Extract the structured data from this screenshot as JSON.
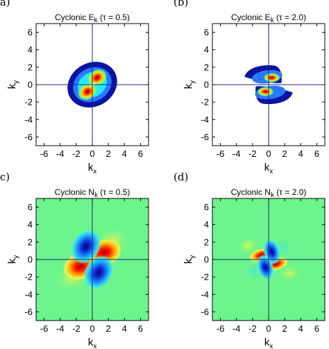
{
  "chart_data": [
    {
      "type": "heatmap",
      "panel": "(a)",
      "title": "Cyclonic E",
      "title_sub": "k",
      "title_suffix": " (τ = 0.5)",
      "xlabel": "k",
      "xlabel_sub": "x",
      "ylabel": "k",
      "ylabel_sub": "y",
      "xlim": [
        -7,
        7
      ],
      "ylim": [
        -7,
        7
      ],
      "xticks": [
        -6,
        -4,
        -2,
        0,
        2,
        4,
        6
      ],
      "yticks": [
        -6,
        -4,
        -2,
        0,
        2,
        4,
        6
      ],
      "background_color": "#ffffff",
      "contours": [
        {
          "level": "low",
          "color": "#0a14a0",
          "shape": "ellipse",
          "cx": 0,
          "cy": 0,
          "rx": 3.2,
          "ry": 2.5,
          "rotation_deg": -30
        },
        {
          "level": "mid-low",
          "color": "#2a78ff",
          "shape": "ellipse",
          "cx": 0,
          "cy": 0,
          "rx": 2.5,
          "ry": 1.9,
          "rotation_deg": -30
        },
        {
          "level": "mid",
          "color": "#28e8ff",
          "shape": "ellipse",
          "cx": 0,
          "cy": 0,
          "rx": 1.9,
          "ry": 1.4,
          "rotation_deg": -30
        }
      ],
      "peaks": [
        {
          "k_x": 0.6,
          "k_y": 0.8,
          "value": "max"
        },
        {
          "k_x": -0.6,
          "k_y": -0.8,
          "value": "max"
        }
      ]
    },
    {
      "type": "heatmap",
      "panel": "(b)",
      "title": "Cyclonic E",
      "title_sub": "k",
      "title_suffix": " (τ = 2.0)",
      "xlabel": "k",
      "xlabel_sub": "x",
      "ylabel": "k",
      "ylabel_sub": "y",
      "xlim": [
        -7,
        7
      ],
      "ylim": [
        -7,
        7
      ],
      "xticks": [
        -6,
        -4,
        -2,
        0,
        2,
        4,
        6
      ],
      "yticks": [
        -6,
        -4,
        -2,
        0,
        2,
        4,
        6
      ],
      "background_color": "#ffffff",
      "peaks": [
        {
          "k_x": 0.4,
          "k_y": 0.8,
          "value": "max"
        },
        {
          "k_x": -0.4,
          "k_y": -0.8,
          "value": "max"
        }
      ]
    },
    {
      "type": "heatmap",
      "panel": "(c)",
      "title": "Cyclonic N",
      "title_sub": "k",
      "title_suffix": " (τ = 0.5)",
      "xlabel": "k",
      "xlabel_sub": "x",
      "ylabel": "k",
      "ylabel_sub": "y",
      "xlim": [
        -7,
        7
      ],
      "ylim": [
        -7,
        7
      ],
      "xticks": [
        -6,
        -4,
        -2,
        0,
        2,
        4,
        6
      ],
      "yticks": [
        -6,
        -4,
        -2,
        0,
        2,
        4,
        6
      ],
      "background_color": "#6cf58c",
      "lobes": [
        {
          "k_x": 1.5,
          "k_y": 0.8,
          "sign": "positive",
          "color": "#e81010"
        },
        {
          "k_x": -1.5,
          "k_y": -0.8,
          "sign": "positive",
          "color": "#e81010"
        },
        {
          "k_x": -0.8,
          "k_y": 1.5,
          "sign": "negative",
          "color": "#1230d8"
        },
        {
          "k_x": 0.8,
          "k_y": -1.5,
          "sign": "negative",
          "color": "#1230d8"
        }
      ]
    },
    {
      "type": "heatmap",
      "panel": "(d)",
      "title": "Cyclonic N",
      "title_sub": "k",
      "title_suffix": " (τ = 2.0)",
      "xlabel": "k",
      "xlabel_sub": "x",
      "ylabel": "k",
      "ylabel_sub": "y",
      "xlim": [
        -7,
        7
      ],
      "ylim": [
        -7,
        7
      ],
      "xticks": [
        -6,
        -4,
        -2,
        0,
        2,
        4,
        6
      ],
      "yticks": [
        -6,
        -4,
        -2,
        0,
        2,
        4,
        6
      ],
      "background_color": "#6cf58c",
      "lobes": [
        {
          "k_x": -0.9,
          "k_y": 0.5,
          "sign": "positive",
          "color": "#e81010"
        },
        {
          "k_x": 0.9,
          "k_y": -0.5,
          "sign": "positive",
          "color": "#e81010"
        },
        {
          "k_x": 0.4,
          "k_y": 0.9,
          "sign": "negative",
          "color": "#1230d8"
        },
        {
          "k_x": -0.4,
          "k_y": -0.9,
          "sign": "negative",
          "color": "#1230d8"
        }
      ]
    }
  ]
}
